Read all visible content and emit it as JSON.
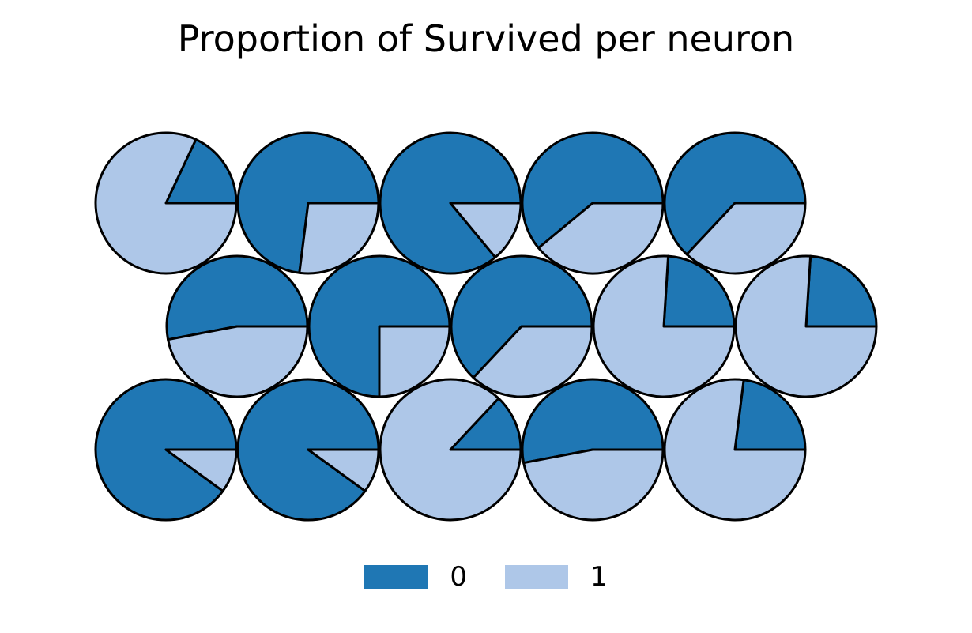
{
  "chart_data": {
    "type": "pie",
    "title": "Proportion of Survived per neuron",
    "legend": {
      "placement": "bottom-center",
      "entries": [
        {
          "label": "0",
          "color": "#1f77b4"
        },
        {
          "label": "1",
          "color": "#aec7e8"
        }
      ]
    },
    "grid": {
      "rows": 3,
      "cols": 5,
      "row_offsets": [
        0,
        0.5,
        0
      ]
    },
    "neurons": [
      {
        "row": 0,
        "col": 0,
        "values": [
          0.18,
          0.82
        ]
      },
      {
        "row": 0,
        "col": 1,
        "values": [
          0.73,
          0.27
        ]
      },
      {
        "row": 0,
        "col": 2,
        "values": [
          0.86,
          0.14
        ]
      },
      {
        "row": 0,
        "col": 3,
        "values": [
          0.61,
          0.39
        ]
      },
      {
        "row": 0,
        "col": 4,
        "values": [
          0.63,
          0.37
        ]
      },
      {
        "row": 1,
        "col": 0,
        "values": [
          0.53,
          0.47
        ]
      },
      {
        "row": 1,
        "col": 1,
        "values": [
          0.75,
          0.25
        ]
      },
      {
        "row": 1,
        "col": 2,
        "values": [
          0.63,
          0.37
        ]
      },
      {
        "row": 1,
        "col": 3,
        "values": [
          0.24,
          0.76
        ]
      },
      {
        "row": 1,
        "col": 4,
        "values": [
          0.24,
          0.76
        ]
      },
      {
        "row": 2,
        "col": 0,
        "values": [
          0.9,
          0.1
        ]
      },
      {
        "row": 2,
        "col": 1,
        "values": [
          0.9,
          0.1
        ]
      },
      {
        "row": 2,
        "col": 2,
        "values": [
          0.13,
          0.87
        ]
      },
      {
        "row": 2,
        "col": 3,
        "values": [
          0.53,
          0.47
        ]
      },
      {
        "row": 2,
        "col": 4,
        "values": [
          0.23,
          0.77
        ]
      }
    ]
  }
}
